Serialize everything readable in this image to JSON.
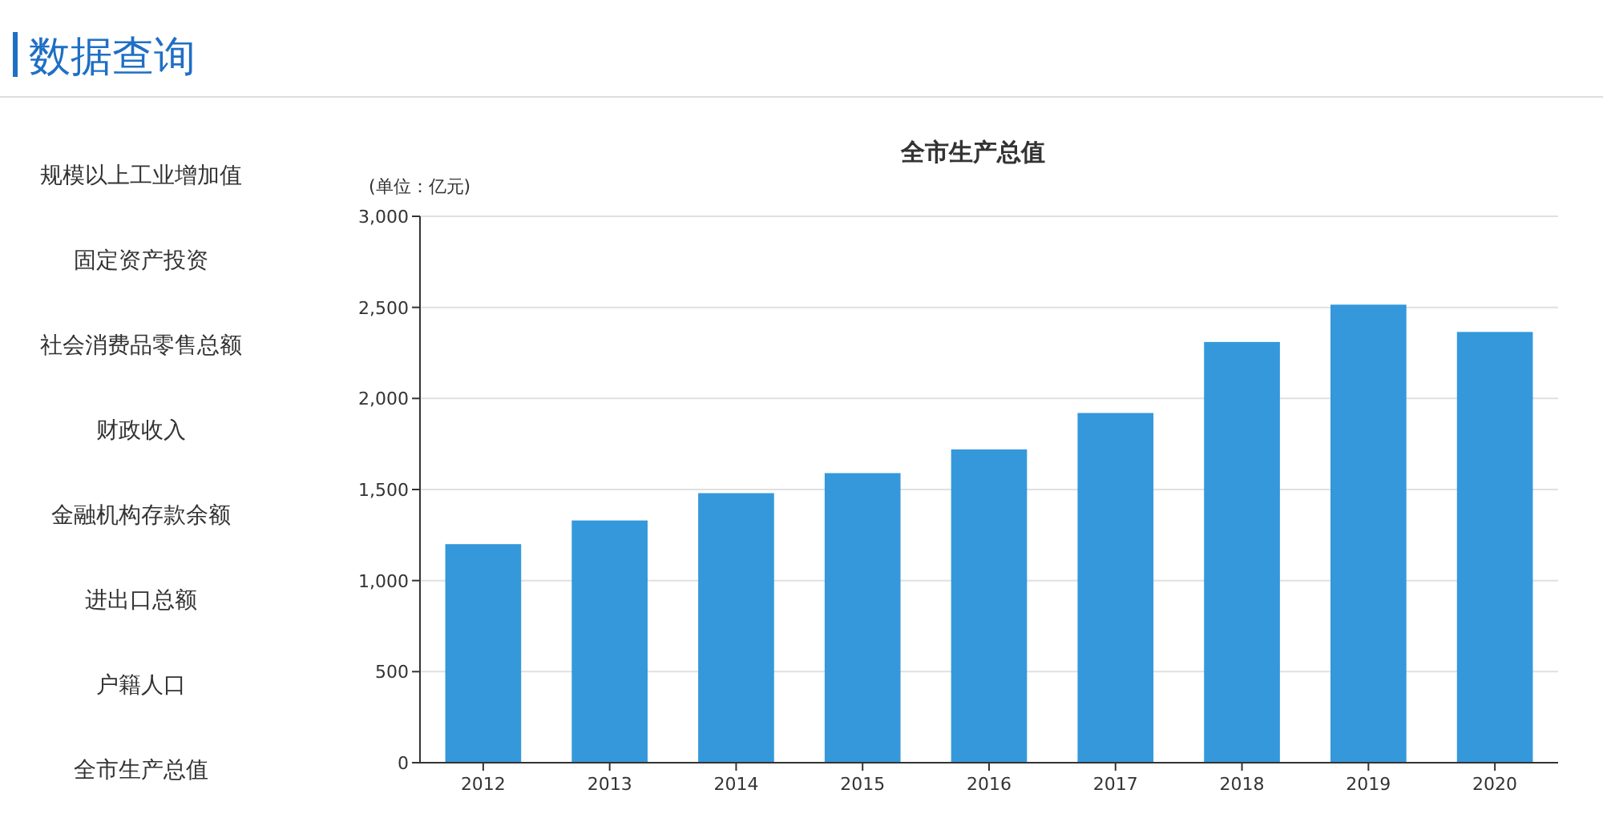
{
  "chart_data": {
    "type": "bar",
    "title": "全市生产总值",
    "ylabel": "(单位：亿元)",
    "categories": [
      "2012",
      "2013",
      "2014",
      "2015",
      "2016",
      "2017",
      "2018",
      "2019",
      "2020"
    ],
    "values": [
      1200,
      1330,
      1480,
      1590,
      1720,
      1920,
      2310,
      2515,
      2365
    ],
    "color": "#3498db",
    "ylim": [
      0,
      3000
    ],
    "yticks": [
      {
        "value": 0,
        "label": "0"
      },
      {
        "value": 500,
        "label": "500"
      },
      {
        "value": 1000,
        "label": "1,000"
      },
      {
        "value": 1500,
        "label": "1,500"
      },
      {
        "value": 2000,
        "label": "2,000"
      },
      {
        "value": 2500,
        "label": "2,500"
      },
      {
        "value": 3000,
        "label": "3,000"
      }
    ],
    "grid": "y",
    "annotations": [
      "数据查询",
      "规模以上工业增加值",
      "固定资产投资",
      "社会消费品零售总额",
      "财政收入",
      "金融机构存款余额",
      "进出口总额",
      "户籍人口",
      "全市生产总值"
    ]
  }
}
